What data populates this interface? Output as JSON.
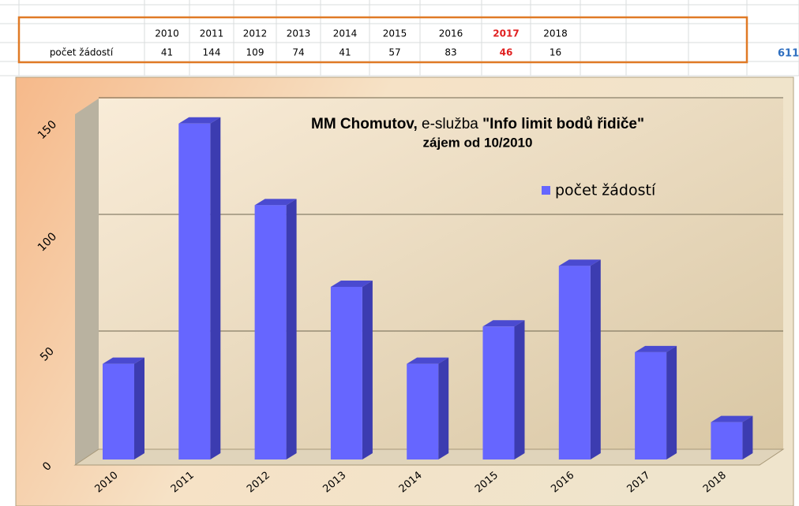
{
  "table": {
    "total": "611"
  },
  "chart_data": {
    "type": "bar",
    "title": [
      "MM Chomutov,",
      "e-služba",
      "\"Info limit  bodů řidiče\""
    ],
    "subtitle": "zájem od 10/2010",
    "categories": [
      "2010",
      "2011",
      "2012",
      "2013",
      "2014",
      "2015",
      "2016",
      "2017",
      "2018"
    ],
    "series": [
      {
        "name": "počet žádostí",
        "color": "#6666ff",
        "values": [
          41,
          144,
          109,
          74,
          41,
          57,
          83,
          46,
          16
        ]
      }
    ],
    "ylim": [
      0,
      150
    ],
    "yticks": [
      0,
      50,
      100,
      150
    ],
    "grid": true,
    "legend": "upper right"
  }
}
